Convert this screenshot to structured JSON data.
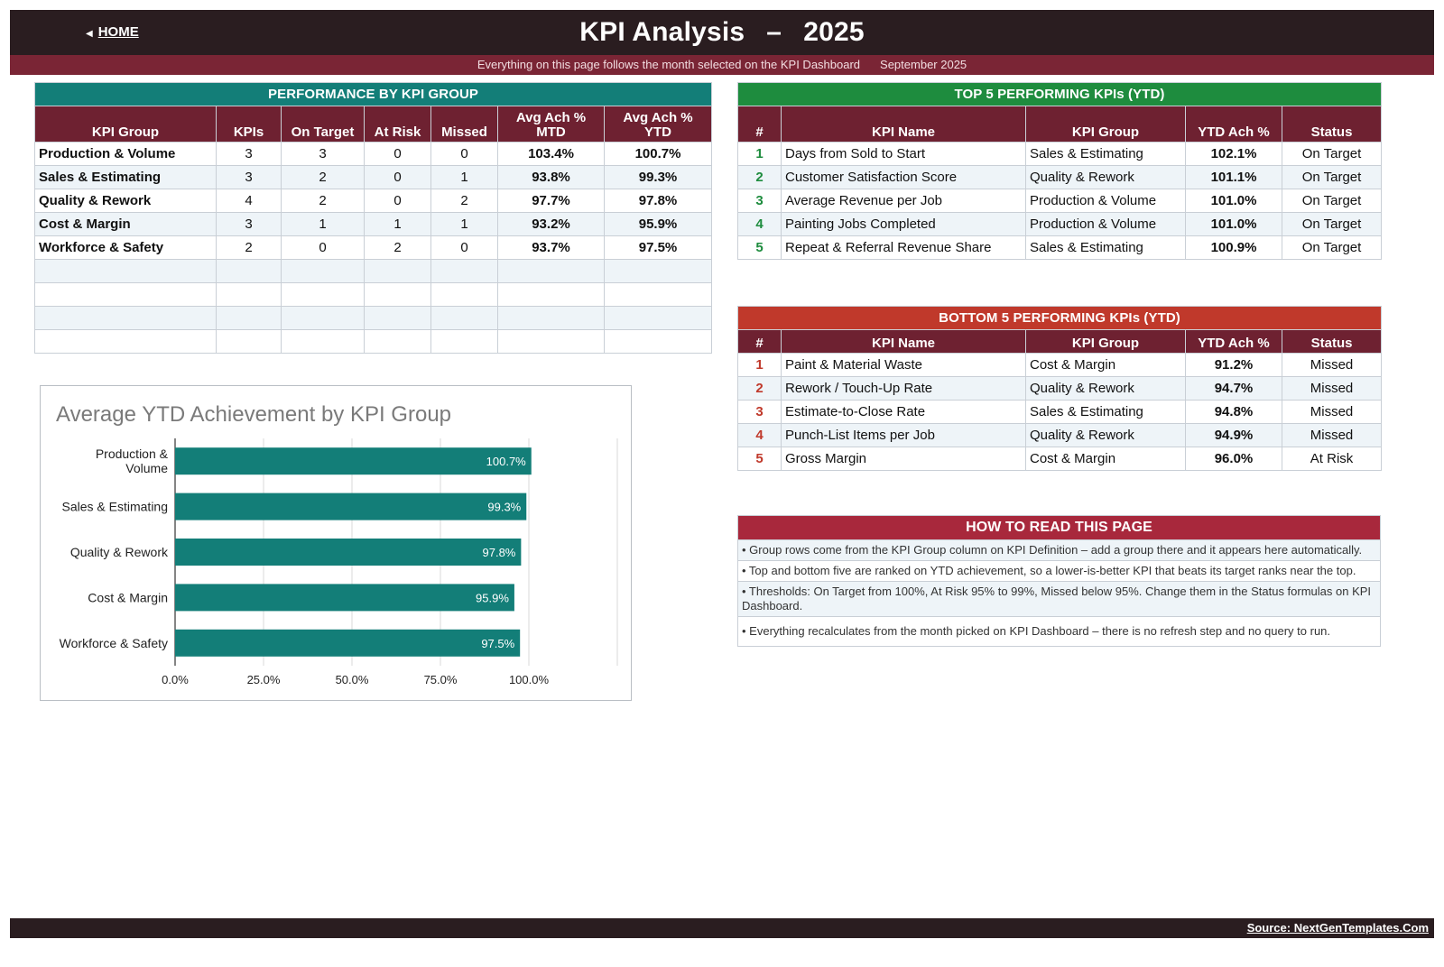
{
  "header": {
    "home_label": "HOME",
    "title": "KPI Analysis",
    "dash": "–",
    "year": "2025",
    "subtitle": "Everything on this page follows the month selected on the KPI Dashboard",
    "month": "September 2025"
  },
  "colors": {
    "dark": "#2a1d20",
    "maroon": "#6e2131",
    "teal": "#137e78",
    "green": "#1e8c3e",
    "red": "#c0392b"
  },
  "group_table": {
    "banner": "PERFORMANCE BY KPI GROUP",
    "headers": [
      "KPI Group",
      "KPIs",
      "On Target",
      "At Risk",
      "Missed",
      "Avg Ach %\nMTD",
      "Avg Ach %\nYTD"
    ],
    "rows": [
      [
        "Production & Volume",
        "3",
        "3",
        "0",
        "0",
        "103.4%",
        "100.7%"
      ],
      [
        "Sales & Estimating",
        "3",
        "2",
        "0",
        "1",
        "93.8%",
        "99.3%"
      ],
      [
        "Quality & Rework",
        "4",
        "2",
        "0",
        "2",
        "97.7%",
        "97.8%"
      ],
      [
        "Cost & Margin",
        "3",
        "1",
        "1",
        "1",
        "93.2%",
        "95.9%"
      ],
      [
        "Workforce & Safety",
        "2",
        "0",
        "2",
        "0",
        "93.7%",
        "97.5%"
      ]
    ],
    "empty_rows": 4
  },
  "top5": {
    "banner": "TOP 5 PERFORMING KPIs  (YTD)",
    "headers": [
      "#",
      "KPI Name",
      "KPI Group",
      "YTD Ach %",
      "Status"
    ],
    "rows": [
      [
        "1",
        "Days from Sold to Start",
        "Sales & Estimating",
        "102.1%",
        "On Target"
      ],
      [
        "2",
        "Customer Satisfaction Score",
        "Quality & Rework",
        "101.1%",
        "On Target"
      ],
      [
        "3",
        "Average Revenue per Job",
        "Production & Volume",
        "101.0%",
        "On Target"
      ],
      [
        "4",
        "Painting Jobs Completed",
        "Production & Volume",
        "101.0%",
        "On Target"
      ],
      [
        "5",
        "Repeat & Referral Revenue Share",
        "Sales & Estimating",
        "100.9%",
        "On Target"
      ]
    ]
  },
  "bottom5": {
    "banner": "BOTTOM 5 PERFORMING KPIs  (YTD)",
    "headers": [
      "#",
      "KPI Name",
      "KPI Group",
      "YTD Ach %",
      "Status"
    ],
    "rows": [
      [
        "1",
        "Paint & Material Waste",
        "Cost & Margin",
        "91.2%",
        "Missed"
      ],
      [
        "2",
        "Rework / Touch-Up Rate",
        "Quality & Rework",
        "94.7%",
        "Missed"
      ],
      [
        "3",
        "Estimate-to-Close Rate",
        "Sales & Estimating",
        "94.8%",
        "Missed"
      ],
      [
        "4",
        "Punch-List Items per Job",
        "Quality & Rework",
        "94.9%",
        "Missed"
      ],
      [
        "5",
        "Gross Margin",
        "Cost & Margin",
        "96.0%",
        "At Risk"
      ]
    ]
  },
  "howto": {
    "banner": "HOW TO READ THIS PAGE",
    "items": [
      "•  Group rows come from the KPI Group column on KPI Definition – add a group there and it appears here automatically.",
      "•  Top and bottom five are ranked on YTD achievement, so a lower-is-better KPI that beats its target ranks near the top.",
      "•  Thresholds: On Target from 100%, At Risk 95% to 99%, Missed below 95%. Change them in the Status formulas on KPI Dashboard.",
      "•  Everything recalculates from the month picked on KPI Dashboard – there is no refresh step and no query to run."
    ]
  },
  "chart_data": {
    "type": "bar",
    "orientation": "horizontal",
    "title": "Average YTD Achievement by KPI Group",
    "categories": [
      "Production & Volume",
      "Sales & Estimating",
      "Quality & Rework",
      "Cost & Margin",
      "Workforce & Safety"
    ],
    "category_lines": [
      [
        "Production &",
        "Volume"
      ],
      [
        "Sales & Estimating"
      ],
      [
        "Quality & Rework"
      ],
      [
        "Cost & Margin"
      ],
      [
        "Workforce & Safety"
      ]
    ],
    "values": [
      100.7,
      99.3,
      97.8,
      95.9,
      97.5
    ],
    "data_labels": [
      "100.7%",
      "99.3%",
      "97.8%",
      "95.9%",
      "97.5%"
    ],
    "xticks": [
      "0.0%",
      "25.0%",
      "50.0%",
      "75.0%",
      "100.0%"
    ],
    "xlim": [
      0,
      125
    ],
    "grid": true,
    "bar_color": "#137e78"
  },
  "footer": {
    "source": "Source: NextGenTemplates.Com"
  }
}
